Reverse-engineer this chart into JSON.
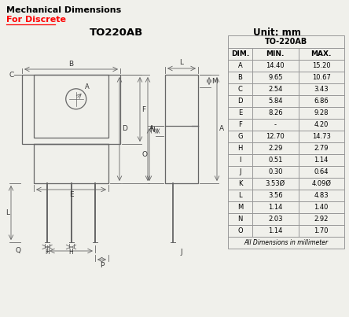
{
  "title1": "Mechanical Dimensions",
  "title2": "For Discrete",
  "package": "TO220AB",
  "unit": "Unit: mm",
  "bg_color": "#f0f0eb",
  "table_header": "TO-220AB",
  "col_headers": [
    "DIM.",
    "MIN.",
    "MAX."
  ],
  "rows": [
    [
      "A",
      "14.40",
      "15.20"
    ],
    [
      "B",
      "9.65",
      "10.67"
    ],
    [
      "C",
      "2.54",
      "3.43"
    ],
    [
      "D",
      "5.84",
      "6.86"
    ],
    [
      "E",
      "8.26",
      "9.28"
    ],
    [
      "F",
      "-",
      "4.20"
    ],
    [
      "G",
      "12.70",
      "14.73"
    ],
    [
      "H",
      "2.29",
      "2.79"
    ],
    [
      "I",
      "0.51",
      "1.14"
    ],
    [
      "J",
      "0.30",
      "0.64"
    ],
    [
      "K",
      "3.53Ø",
      "4.09Ø"
    ],
    [
      "L",
      "3.56",
      "4.83"
    ],
    [
      "M",
      "1.14",
      "1.40"
    ],
    [
      "N",
      "2.03",
      "2.92"
    ],
    [
      "O",
      "1.14",
      "1.70"
    ]
  ],
  "footer": "All Dimensions in millimeter"
}
